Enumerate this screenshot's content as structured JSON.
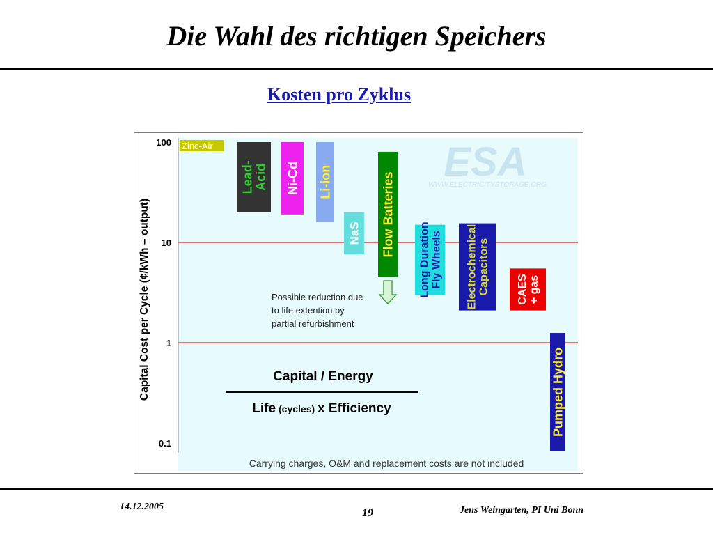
{
  "slide": {
    "title": "Die Wahl des richtigen Speichers",
    "subtitle": "Kosten pro Zyklus"
  },
  "footer": {
    "date": "14.12.2005",
    "page": "19",
    "author": "Jens Weingarten, PI Uni Bonn"
  },
  "chart_data": {
    "type": "bar",
    "ylabel": "Capital Cost per Cycle (¢/kWh – output)",
    "yscale": "log",
    "ylim": [
      0.1,
      100
    ],
    "yticks": [
      "100",
      "10",
      "1",
      "0.1"
    ],
    "grid": "red lines at 10 and 1",
    "bars": [
      {
        "label": "Zinc-Air",
        "low": 100,
        "high": 100,
        "color": "#c8c800",
        "textColor": "#ffffff"
      },
      {
        "label": "Lead-\nAcid",
        "low": 20,
        "high": 100,
        "color": "#333333",
        "textColor": "#33cc33"
      },
      {
        "label": "Ni-Cd",
        "low": 19,
        "high": 100,
        "color": "#ee22ee",
        "textColor": "#ffffff"
      },
      {
        "label": "Li-ion",
        "low": 16,
        "high": 100,
        "color": "#88aaee",
        "textColor": "#ffee33"
      },
      {
        "label": "NaS",
        "low": 7.6,
        "high": 20,
        "color": "#66dddd",
        "textColor": "#ffffff"
      },
      {
        "label": "Flow Batteries",
        "low": 4.5,
        "high": 80,
        "color": "#008800",
        "textColor": "#ffee33"
      },
      {
        "label": "Long Duration\nFly Wheels",
        "low": 3.0,
        "high": 15,
        "color": "#22dddd",
        "textColor": "#1a1aaa"
      },
      {
        "label": "Electrochemical\nCapacitors",
        "low": 2.1,
        "high": 15.5,
        "color": "#1a1aaa",
        "textColor": "#dddd22"
      },
      {
        "label": "CAES\n+ gas",
        "low": 2.1,
        "high": 5.5,
        "color": "#ee0000",
        "textColor": "#ffffff"
      },
      {
        "label": "Pumped Hydro",
        "low": 0.1,
        "high": 1.25,
        "color": "#1a1aaa",
        "textColor": "#ffee33"
      }
    ],
    "annotation": "Possible reduction due\nto life extention by\npartial refurbishment",
    "formula": {
      "numerator": "Capital / Energy",
      "denominator_1": "Life",
      "denominator_2": "(cycles)",
      "denominator_3": "x Efficiency"
    },
    "footnote": "Carrying charges, O&M and replacement costs are not included",
    "watermark": "ESA",
    "watermark_url": "WWW.ELECTRICITYSTORAGE.ORG"
  }
}
